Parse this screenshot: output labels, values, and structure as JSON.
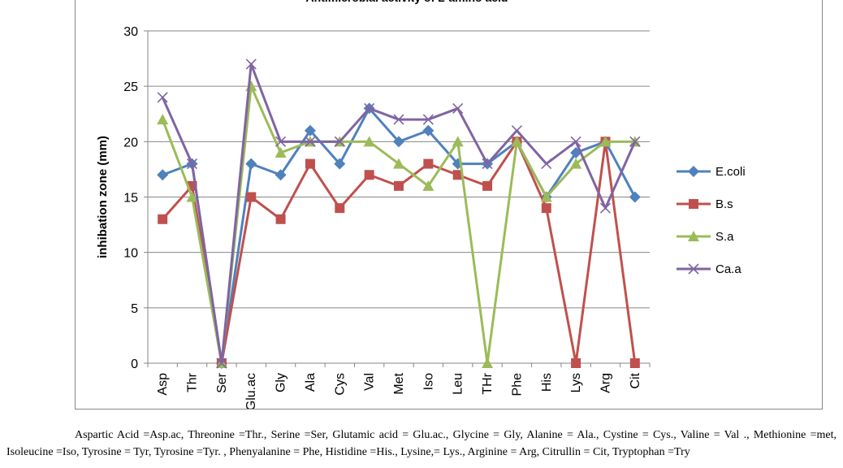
{
  "chart_data": {
    "type": "line",
    "title": "Antimicrobial activity of L-amino acid",
    "xlabel": "",
    "ylabel": "inhibation zone (mm)",
    "ylim": [
      0,
      30
    ],
    "yticks": [
      0,
      5,
      10,
      15,
      20,
      25,
      30
    ],
    "grid": true,
    "legend_position": "right",
    "categories": [
      "Asp",
      "Thr",
      "Ser",
      "Glu.ac",
      "Gly",
      "Ala",
      "Cys",
      "Val",
      "Met",
      "Iso",
      "Leu",
      "THr",
      "Phe",
      "His",
      "Lys",
      "Arg",
      "Cit"
    ],
    "series": [
      {
        "name": "E.coli",
        "color": "#4F81BD",
        "marker": "diamond",
        "values": [
          17,
          18,
          0,
          18,
          17,
          21,
          18,
          23,
          20,
          21,
          18,
          18,
          20,
          15,
          19,
          20,
          15
        ]
      },
      {
        "name": "B.s",
        "color": "#C0504D",
        "marker": "square",
        "values": [
          13,
          16,
          0,
          15,
          13,
          18,
          14,
          17,
          16,
          18,
          17,
          16,
          20,
          14,
          0,
          20,
          0
        ]
      },
      {
        "name": "S.a",
        "color": "#9BBB59",
        "marker": "triangle",
        "values": [
          22,
          15,
          0,
          25,
          19,
          20,
          20,
          20,
          18,
          16,
          20,
          0,
          20,
          15,
          18,
          20,
          20
        ]
      },
      {
        "name": "Ca.a",
        "color": "#8064A2",
        "marker": "x",
        "values": [
          24,
          18,
          0,
          27,
          20,
          20,
          20,
          23,
          22,
          22,
          23,
          18,
          21,
          18,
          20,
          14,
          20
        ]
      }
    ]
  },
  "caption": "Aspartic Acid =Asp.ac, Threonine =Thr., Serine =Ser, Glutamic acid = Glu.ac., Glycine = Gly, Alanine = Ala., Cystine = Cys., Valine = Val ., Methionine =met, Isoleucine =Iso, Tyrosine = Tyr, Tyrosine =Tyr. , Phenyalanine = Phe, Histidine =His., Lysine,= Lys., Arginine = Arg, Citrullin = Cit, Tryptophan =Try"
}
